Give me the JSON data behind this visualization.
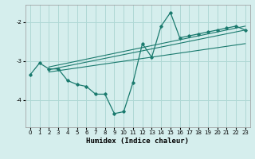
{
  "xlabel": "Humidex (Indice chaleur)",
  "background_color": "#d5eeed",
  "grid_color": "#afd8d5",
  "line_color": "#1a7a6e",
  "xlim": [
    -0.5,
    23.5
  ],
  "ylim": [
    -4.7,
    -1.55
  ],
  "yticks": [
    -4,
    -3,
    -2
  ],
  "xticks": [
    0,
    1,
    2,
    3,
    4,
    5,
    6,
    7,
    8,
    9,
    10,
    11,
    12,
    13,
    14,
    15,
    16,
    17,
    18,
    19,
    20,
    21,
    22,
    23
  ],
  "main_x": [
    0,
    1,
    2,
    3,
    4,
    5,
    6,
    7,
    8,
    9,
    10,
    11,
    12,
    13,
    14,
    15,
    16,
    17,
    18,
    19,
    20,
    21,
    22,
    23
  ],
  "main_y": [
    -3.35,
    -3.05,
    -3.2,
    -3.2,
    -3.5,
    -3.6,
    -3.65,
    -3.85,
    -3.85,
    -4.35,
    -4.3,
    -3.55,
    -2.55,
    -2.9,
    -2.1,
    -1.75,
    -2.4,
    -2.35,
    -2.3,
    -2.25,
    -2.2,
    -2.15,
    -2.1,
    -2.2
  ],
  "trend1_x": [
    2,
    23
  ],
  "trend1_y": [
    -3.15,
    -2.1
  ],
  "trend2_x": [
    2,
    23
  ],
  "trend2_y": [
    -3.22,
    -2.2
  ],
  "trend3_x": [
    2,
    23
  ],
  "trend3_y": [
    -3.28,
    -2.55
  ]
}
